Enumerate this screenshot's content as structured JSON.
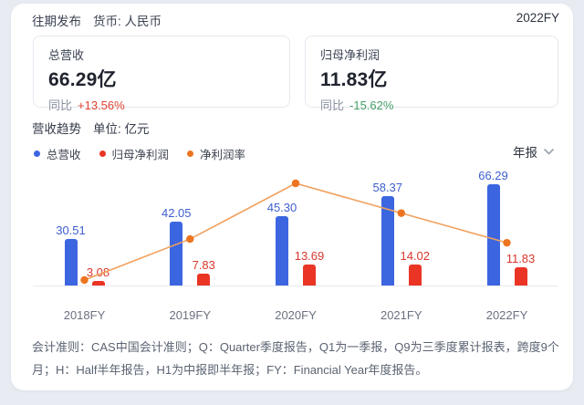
{
  "header": {
    "title": "往期发布",
    "currency": "货币: 人民币",
    "period": "2022FY"
  },
  "summary_cards": [
    {
      "title": "总营收",
      "value": "66.29亿",
      "yoy_label": "同比",
      "yoy": "+13.56%",
      "yoy_color": "#e0402f"
    },
    {
      "title": "归母净利润",
      "value": "11.83亿",
      "yoy_label": "同比",
      "yoy": "-15.62%",
      "yoy_color": "#43a066"
    }
  ],
  "section": {
    "title": "营收趋势",
    "unit": "单位: 亿元"
  },
  "legend": [
    {
      "label": "总营收",
      "color": "#3c66e0"
    },
    {
      "label": "归母净利润",
      "color": "#ea3524"
    },
    {
      "label": "净利润率",
      "color": "#ed7420"
    }
  ],
  "period_selector": {
    "label": "年报"
  },
  "chart_data": {
    "type": "bar",
    "categories": [
      "2018FY",
      "2019FY",
      "2020FY",
      "2021FY",
      "2022FY"
    ],
    "series": [
      {
        "name": "总营收",
        "type": "bar",
        "color": "#3c66e0",
        "label_color": "#3d5ecf",
        "values": [
          30.51,
          42.05,
          45.3,
          58.37,
          66.29
        ]
      },
      {
        "name": "归母净利润",
        "type": "bar",
        "color": "#ea3524",
        "label_color": "#d8372c",
        "values": [
          3.08,
          7.83,
          13.69,
          14.02,
          11.83
        ]
      },
      {
        "name": "净利润率",
        "type": "line",
        "color": "#ed7420",
        "line_color": "#f0a15e",
        "unit": "%",
        "values": [
          10.09,
          18.62,
          30.22,
          24.02,
          17.85
        ]
      }
    ],
    "ylabel": "亿元",
    "value_labels": true,
    "grid": false,
    "legend_position": "top-left"
  },
  "footer": {
    "text": "会计准则：CAS中国会计准则；Q：Quarter季度报告，Q1为一季报，Q9为三季度累计报表，跨度9个月；H：Half半年报告，H1为中报即半年报；FY：Financial Year年度报告。"
  }
}
